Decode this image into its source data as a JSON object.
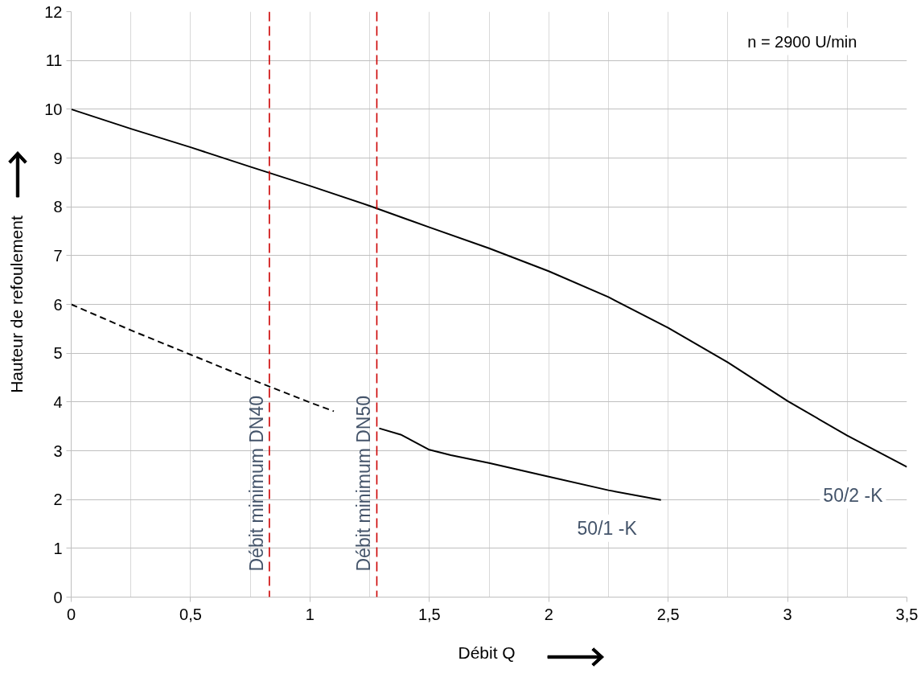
{
  "chart_data": {
    "type": "line",
    "xlabel": "Débit  Q",
    "ylabel": "Hauteur de refoulement",
    "xlim": [
      0,
      3.5
    ],
    "ylim": [
      0,
      12
    ],
    "xticks": [
      0,
      {
        "value": 0.25,
        "label": null
      },
      {
        "value": 0.5,
        "label": "0,5"
      },
      {
        "value": 0.75,
        "label": null
      },
      1,
      {
        "value": 1.25,
        "label": null
      },
      {
        "value": 1.5,
        "label": "1,5"
      },
      {
        "value": 1.75,
        "label": null
      },
      2,
      {
        "value": 2.25,
        "label": null
      },
      {
        "value": 2.5,
        "label": "2,5"
      },
      {
        "value": 2.75,
        "label": null
      },
      3,
      {
        "value": 3.25,
        "label": null
      },
      {
        "value": 3.5,
        "label": "3,5"
      }
    ],
    "yticks": [
      0,
      1,
      2,
      3,
      4,
      5,
      6,
      7,
      8,
      9,
      10,
      11,
      12
    ],
    "grid": true,
    "line_style": "solid",
    "series": [
      {
        "name": "50/2 -K",
        "color": "#000000",
        "x": [
          0,
          0.25,
          0.5,
          0.75,
          1.0,
          1.25,
          1.5,
          1.75,
          2.0,
          2.25,
          2.5,
          2.75,
          3.0,
          3.25,
          3.5
        ],
        "values": [
          10,
          9.6,
          9.22,
          8.82,
          8.43,
          8.02,
          7.58,
          7.15,
          6.68,
          6.15,
          5.52,
          4.81,
          4.02,
          3.31,
          2.67
        ]
      },
      {
        "color": "#000000",
        "line_style": "dashed",
        "x": [
          0,
          0.25,
          0.5,
          0.75,
          1.0,
          1.1
        ],
        "values": [
          6,
          5.47,
          4.97,
          4.47,
          3.99,
          3.81
        ]
      },
      {
        "name": "50/1 -K",
        "color": "#000000",
        "x": [
          1.29,
          1.38,
          1.5,
          1.59,
          1.75,
          2.0,
          2.25,
          2.47
        ],
        "values": [
          3.46,
          3.33,
          3.02,
          2.91,
          2.75,
          2.47,
          2.19,
          1.99
        ]
      }
    ],
    "ref_lines": [
      {
        "axis": "x",
        "value": 0.83,
        "label": "Débit minimum DN40",
        "color": "#cc0000",
        "line_style": "dashed"
      },
      {
        "axis": "x",
        "value": 1.28,
        "label": "Débit minimum DN50",
        "color": "#cc0000",
        "line_style": "dashed"
      }
    ],
    "annotations": [
      "n = 2900   U/min"
    ]
  }
}
